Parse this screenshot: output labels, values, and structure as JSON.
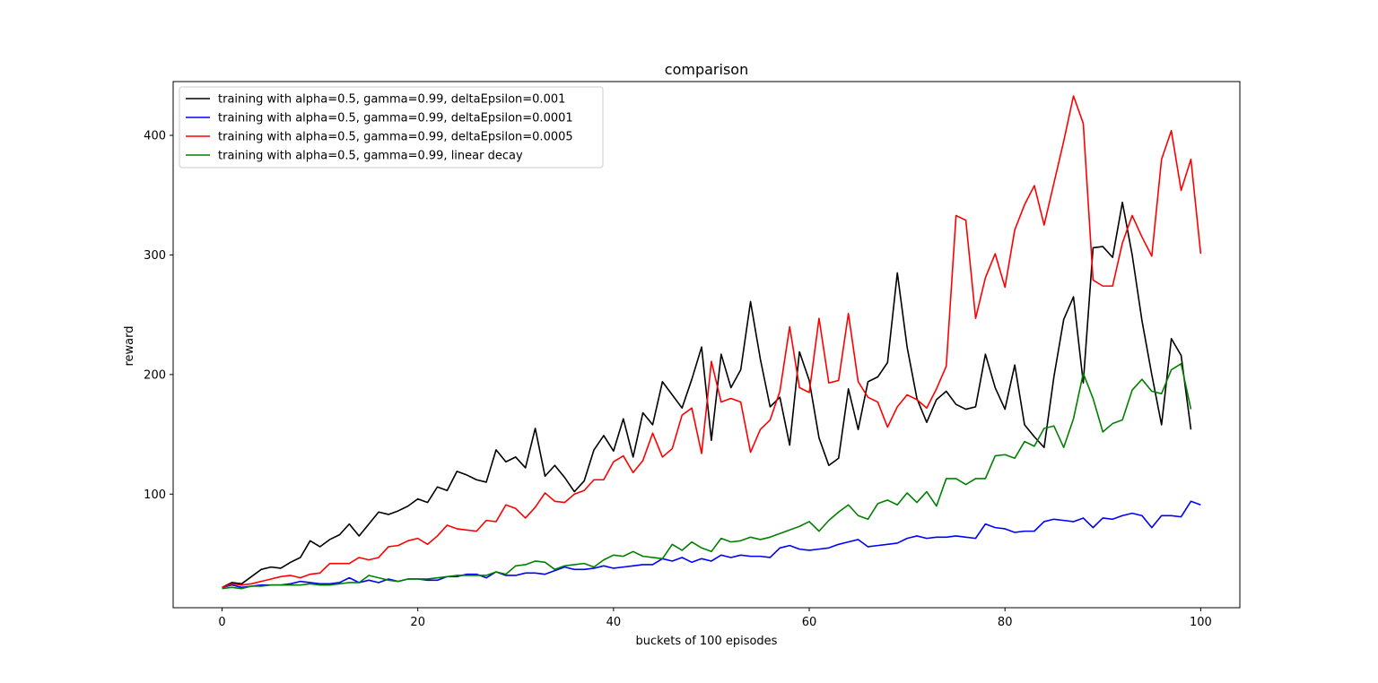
{
  "chart_data": {
    "type": "line",
    "title": "comparison",
    "xlabel": "buckets of 100 episodes",
    "ylabel": "reward",
    "xlim": [
      -5,
      104
    ],
    "ylim": [
      5,
      445
    ],
    "xticks": [
      0,
      20,
      40,
      60,
      80,
      100
    ],
    "yticks": [
      100,
      200,
      300,
      400
    ],
    "grid": false,
    "legend": "top-left",
    "series": [
      {
        "name": "training with alpha=0.5, gamma=0.99, deltaEpsilon=0.001",
        "color": "#000000",
        "values": [
          22,
          26,
          25,
          31,
          37,
          39,
          38,
          43,
          47,
          61,
          56,
          62,
          66,
          75,
          65,
          75,
          85,
          83,
          86,
          90,
          96,
          93,
          106,
          103,
          119,
          116,
          112,
          110,
          137,
          127,
          131,
          122,
          155,
          115,
          124,
          114,
          102,
          111,
          137,
          149,
          136,
          163,
          131,
          168,
          158,
          194,
          183,
          172,
          196,
          223,
          145,
          217,
          189,
          204,
          261,
          213,
          173,
          181,
          141,
          219,
          195,
          147,
          124,
          130,
          188,
          154,
          194,
          198,
          210,
          285,
          223,
          180,
          160,
          179,
          186,
          175,
          171,
          173,
          217,
          189,
          171,
          208,
          158,
          148,
          139,
          198,
          246,
          265,
          193,
          306,
          307,
          298,
          344,
          300,
          245,
          200,
          158,
          230,
          216,
          154
        ]
      },
      {
        "name": "training with alpha=0.5, gamma=0.99, deltaEpsilon=0.0001",
        "color": "#0000ff",
        "values": [
          22,
          24,
          22,
          23,
          24,
          24,
          24,
          25,
          27,
          26,
          25,
          25,
          26,
          30,
          26,
          28,
          26,
          29,
          27,
          29,
          29,
          28,
          28,
          31,
          31,
          33,
          33,
          30,
          35,
          32,
          32,
          34,
          34,
          33,
          36,
          39,
          37,
          37,
          38,
          40,
          38,
          39,
          40,
          41,
          41,
          46,
          44,
          47,
          43,
          46,
          44,
          49,
          47,
          49,
          48,
          48,
          47,
          55,
          57,
          54,
          53,
          54,
          55,
          58,
          60,
          62,
          56,
          57,
          58,
          59,
          63,
          65,
          63,
          64,
          64,
          65,
          64,
          63,
          75,
          72,
          71,
          68,
          69,
          69,
          77,
          79,
          78,
          77,
          80,
          72,
          80,
          79,
          82,
          84,
          82,
          72,
          82,
          82,
          81,
          94,
          91
        ]
      },
      {
        "name": "training with alpha=0.5, gamma=0.99, deltaEpsilon=0.0005",
        "color": "#ff0000",
        "values": [
          22,
          25,
          24,
          25,
          27,
          29,
          31,
          32,
          30,
          33,
          34,
          42,
          42,
          42,
          47,
          45,
          47,
          56,
          57,
          61,
          63,
          58,
          65,
          74,
          71,
          70,
          69,
          78,
          77,
          91,
          88,
          80,
          89,
          101,
          94,
          93,
          100,
          103,
          112,
          112,
          127,
          132,
          118,
          128,
          151,
          131,
          138,
          166,
          172,
          134,
          211,
          177,
          180,
          177,
          135,
          154,
          162,
          186,
          240,
          189,
          185,
          247,
          193,
          195,
          251,
          194,
          181,
          177,
          156,
          173,
          183,
          179,
          172,
          188,
          207,
          333,
          329,
          247,
          281,
          301,
          273,
          321,
          342,
          358,
          325,
          360,
          395,
          433,
          410,
          279,
          274,
          274,
          310,
          333,
          315,
          299,
          380,
          404,
          354,
          380,
          301
        ]
      },
      {
        "name": "training with alpha=0.5, gamma=0.99, linear decay",
        "color": "#008000",
        "values": [
          21,
          22,
          21,
          23,
          23,
          24,
          24,
          24,
          24,
          25,
          24,
          24,
          25,
          26,
          26,
          32,
          30,
          28,
          27,
          29,
          29,
          29,
          30,
          31,
          32,
          32,
          32,
          32,
          35,
          33,
          40,
          41,
          44,
          43,
          37,
          40,
          41,
          42,
          39,
          45,
          49,
          48,
          52,
          48,
          47,
          46,
          58,
          53,
          60,
          55,
          52,
          63,
          60,
          61,
          64,
          62,
          64,
          67,
          70,
          73,
          77,
          69,
          78,
          85,
          91,
          82,
          79,
          92,
          95,
          91,
          101,
          93,
          102,
          90,
          113,
          113,
          108,
          113,
          113,
          132,
          133,
          130,
          144,
          140,
          155,
          157,
          139,
          163,
          201,
          180,
          152,
          159,
          162,
          187,
          196,
          186,
          184,
          204,
          209,
          171
        ]
      }
    ]
  }
}
